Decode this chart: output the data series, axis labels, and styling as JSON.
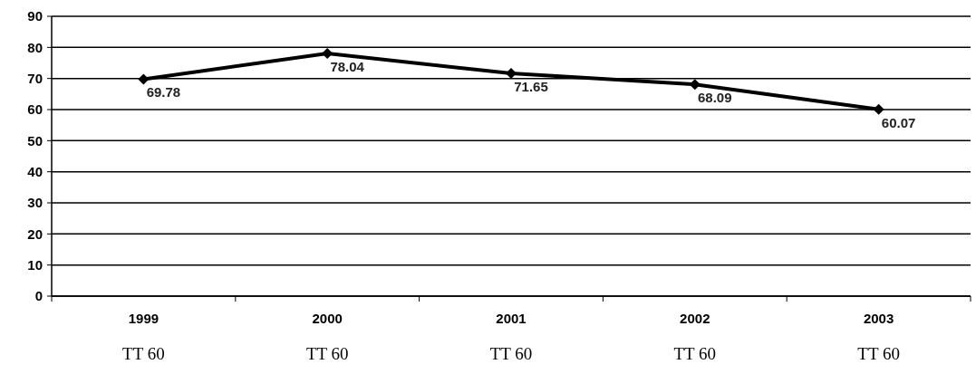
{
  "chart_data": {
    "type": "line",
    "categories": [
      "1999\nTT 60",
      "2000\nTT 60",
      "2001\nTT 60",
      "2002\nTT 60",
      "2003\nTT 60"
    ],
    "series": [
      {
        "color": "#000000",
        "values": [
          69.78,
          78.04,
          71.65,
          68.09,
          60.07
        ]
      }
    ],
    "ylim": [
      0,
      90
    ],
    "yticks": [
      0,
      10,
      20,
      30,
      40,
      50,
      60,
      70,
      80,
      90
    ],
    "grid": "y",
    "marker": "diamond",
    "line_style": "solid",
    "data_labels": true
  }
}
